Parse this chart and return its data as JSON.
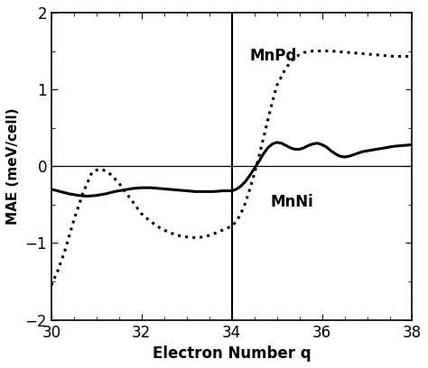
{
  "title": "",
  "xlabel": "Electron Number q",
  "ylabel": "MAE (meV/cell)",
  "xlim": [
    30,
    38
  ],
  "ylim": [
    -2,
    2
  ],
  "xticks": [
    30,
    32,
    34,
    36,
    38
  ],
  "yticks": [
    -2,
    -1,
    0,
    1,
    2
  ],
  "vline_x": 34,
  "hline_y": 0,
  "MnPd_label": "MnPd",
  "MnNi_label": "MnNi",
  "background_color": "#ffffff",
  "line_color": "#000000",
  "MnPd_x": [
    30.0,
    30.15,
    30.3,
    30.5,
    30.7,
    30.9,
    31.0,
    31.1,
    31.2,
    31.3,
    31.4,
    31.5,
    31.6,
    31.7,
    31.8,
    31.9,
    32.0,
    32.2,
    32.4,
    32.6,
    32.8,
    33.0,
    33.2,
    33.4,
    33.6,
    33.8,
    34.0,
    34.1,
    34.2,
    34.3,
    34.4,
    34.5,
    34.6,
    34.7,
    34.8,
    34.9,
    35.0,
    35.2,
    35.4,
    35.6,
    35.8,
    36.0,
    36.2,
    36.4,
    36.6,
    36.8,
    37.0,
    37.2,
    37.4,
    37.6,
    37.8,
    38.0
  ],
  "MnPd_y": [
    -1.55,
    -1.35,
    -1.1,
    -0.7,
    -0.35,
    -0.08,
    -0.05,
    -0.04,
    -0.06,
    -0.1,
    -0.16,
    -0.22,
    -0.3,
    -0.38,
    -0.46,
    -0.54,
    -0.62,
    -0.72,
    -0.8,
    -0.86,
    -0.9,
    -0.92,
    -0.93,
    -0.92,
    -0.88,
    -0.83,
    -0.78,
    -0.72,
    -0.62,
    -0.48,
    -0.3,
    -0.1,
    0.12,
    0.36,
    0.6,
    0.84,
    1.05,
    1.28,
    1.42,
    1.48,
    1.5,
    1.5,
    1.5,
    1.49,
    1.48,
    1.47,
    1.46,
    1.45,
    1.44,
    1.43,
    1.43,
    1.43
  ],
  "MnNi_x": [
    30.0,
    30.2,
    30.4,
    30.6,
    30.8,
    31.0,
    31.2,
    31.4,
    31.6,
    31.8,
    32.0,
    32.2,
    32.4,
    32.6,
    32.8,
    33.0,
    33.2,
    33.4,
    33.6,
    33.8,
    34.0,
    34.1,
    34.2,
    34.3,
    34.4,
    34.5,
    34.6,
    34.7,
    34.8,
    34.9,
    35.0,
    35.1,
    35.2,
    35.3,
    35.4,
    35.5,
    35.6,
    35.7,
    35.8,
    35.9,
    36.0,
    36.1,
    36.2,
    36.3,
    36.4,
    36.5,
    36.6,
    36.7,
    36.8,
    36.9,
    37.0,
    37.2,
    37.4,
    37.6,
    37.8,
    38.0
  ],
  "MnNi_y": [
    -0.3,
    -0.33,
    -0.36,
    -0.38,
    -0.39,
    -0.38,
    -0.36,
    -0.33,
    -0.31,
    -0.29,
    -0.28,
    -0.28,
    -0.29,
    -0.3,
    -0.31,
    -0.32,
    -0.33,
    -0.33,
    -0.33,
    -0.32,
    -0.32,
    -0.3,
    -0.26,
    -0.2,
    -0.12,
    -0.03,
    0.06,
    0.16,
    0.24,
    0.29,
    0.31,
    0.3,
    0.27,
    0.24,
    0.22,
    0.22,
    0.24,
    0.27,
    0.29,
    0.3,
    0.28,
    0.25,
    0.2,
    0.16,
    0.13,
    0.12,
    0.13,
    0.15,
    0.17,
    0.19,
    0.2,
    0.22,
    0.24,
    0.26,
    0.27,
    0.28
  ]
}
